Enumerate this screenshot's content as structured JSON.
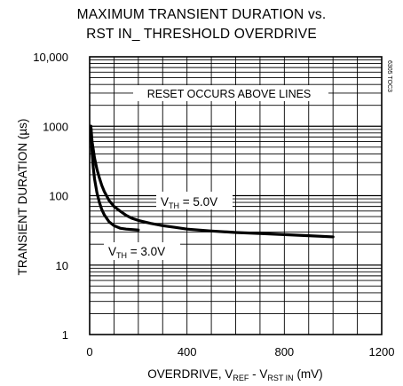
{
  "chart_data": {
    "type": "line",
    "title": "MAXIMUM TRANSIENT DURATION vs.",
    "subtitle": "RST IN_ THRESHOLD OVERDRIVE",
    "xlabel": {
      "base": "OVERDRIVE, V",
      "sub1": "REF",
      "mid": " - V",
      "sub2": "RST IN",
      "unit": " (mV)"
    },
    "ylabel": "TRANSIENT DURATION (µs)",
    "x_ticks": [
      "0",
      "400",
      "800",
      "1200"
    ],
    "y_ticks": [
      "1",
      "10",
      "100",
      "1000",
      "10,000"
    ],
    "xlim": [
      0,
      1200
    ],
    "ylim": [
      1,
      10000
    ],
    "y_scale": "log",
    "grid": true,
    "annotation": "RESET OCCURS ABOVE LINES",
    "figure_code": "6305 TOC3",
    "series": [
      {
        "name": "5.0V",
        "label_prefix": "V",
        "label_sub": "TH",
        "label_suffix": " = 5.0V",
        "x": [
          5,
          10,
          15,
          20,
          30,
          40,
          50,
          60,
          80,
          100,
          125,
          150,
          175,
          200,
          250,
          300,
          350,
          400,
          500,
          600,
          700,
          800,
          900,
          1000
        ],
        "y": [
          1000,
          600,
          460,
          350,
          240,
          180,
          140,
          115,
          85,
          70,
          60,
          52,
          47,
          44,
          40,
          37,
          35,
          33,
          31,
          29.5,
          28.5,
          27.5,
          26.5,
          25.5
        ]
      },
      {
        "name": "3.0V",
        "label_prefix": "V",
        "label_sub": "TH",
        "label_suffix": " = 3.0V",
        "x": [
          5,
          10,
          15,
          20,
          30,
          40,
          50,
          60,
          80,
          100,
          125,
          150,
          200
        ],
        "y": [
          1000,
          420,
          250,
          175,
          110,
          80,
          63,
          53,
          42,
          37,
          34,
          33,
          32
        ]
      }
    ]
  }
}
